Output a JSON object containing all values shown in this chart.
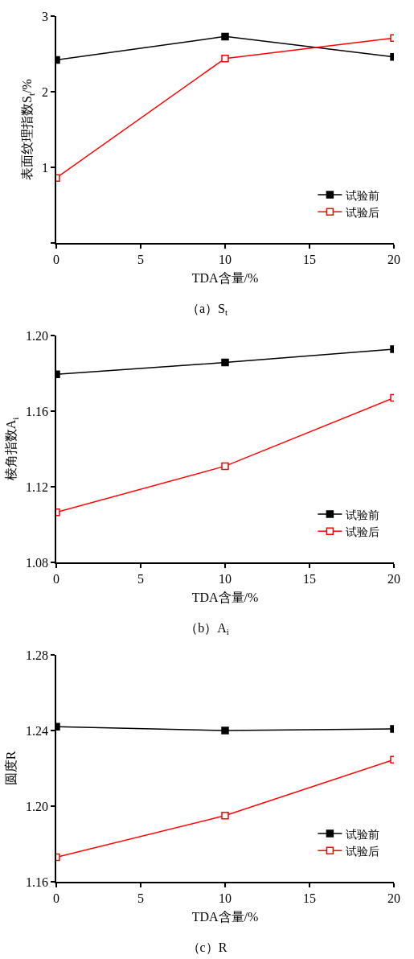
{
  "chart_data": [
    {
      "type": "line",
      "title": "（a）S$_{t}$",
      "xlabel": "TDA含量/%",
      "ylabel": "表面纹理指数S$_{t}$/%",
      "x": [
        0,
        10,
        20
      ],
      "xlim": [
        0,
        20
      ],
      "xticks": [
        0,
        5,
        10,
        15,
        20
      ],
      "ylim": [
        0,
        3
      ],
      "yticks": [
        {
          "value": 0,
          "label": null
        },
        1,
        2,
        3
      ],
      "marker": "square",
      "grid": false,
      "legend": "bottom right",
      "series": [
        {
          "name": "试验前",
          "color": "#000000",
          "values": [
            2.42,
            2.73,
            2.46
          ]
        },
        {
          "name": "试验后",
          "color": "#ff0000",
          "values": [
            0.86,
            2.44,
            2.71
          ]
        }
      ]
    },
    {
      "type": "line",
      "title": "（b）A$_{i}$",
      "xlabel": "TDA含量/%",
      "ylabel": "棱角指数A$_{i}$",
      "x": [
        0,
        10,
        20
      ],
      "xlim": [
        0,
        20
      ],
      "xticks": [
        0,
        5,
        10,
        15,
        20
      ],
      "ylim": [
        1.08,
        1.2
      ],
      "yticks": [
        {
          "value": 1.08,
          "label": "1.08"
        },
        {
          "value": 1.12,
          "label": "1.12"
        },
        {
          "value": 1.16,
          "label": "1.16"
        },
        {
          "value": 1.2,
          "label": "1.20"
        }
      ],
      "marker": "square",
      "grid": false,
      "legend": "bottom right",
      "series": [
        {
          "name": "试验前",
          "color": "#000000",
          "values": [
            1.1795,
            1.1857,
            1.1928
          ]
        },
        {
          "name": "试验后",
          "color": "#ff0000",
          "values": [
            1.1065,
            1.1309,
            1.167
          ]
        }
      ]
    },
    {
      "type": "line",
      "title": "（c）R",
      "xlabel": "TDA含量/%",
      "ylabel": "圆度R",
      "x": [
        0,
        10,
        20
      ],
      "xlim": [
        0,
        20
      ],
      "xticks": [
        0,
        5,
        10,
        15,
        20
      ],
      "ylim": [
        1.16,
        1.28
      ],
      "yticks": [
        {
          "value": 1.16,
          "label": "1.16"
        },
        {
          "value": 1.2,
          "label": "1.20"
        },
        {
          "value": 1.24,
          "label": "1.24"
        },
        {
          "value": 1.28,
          "label": "1.28"
        }
      ],
      "marker": "square",
      "grid": false,
      "legend": "bottom right",
      "series": [
        {
          "name": "试验前",
          "color": "#000000",
          "values": [
            1.242,
            1.24,
            1.2408
          ]
        },
        {
          "name": "试验后",
          "color": "#ff0000",
          "values": [
            1.173,
            1.195,
            1.2246
          ]
        }
      ]
    }
  ]
}
